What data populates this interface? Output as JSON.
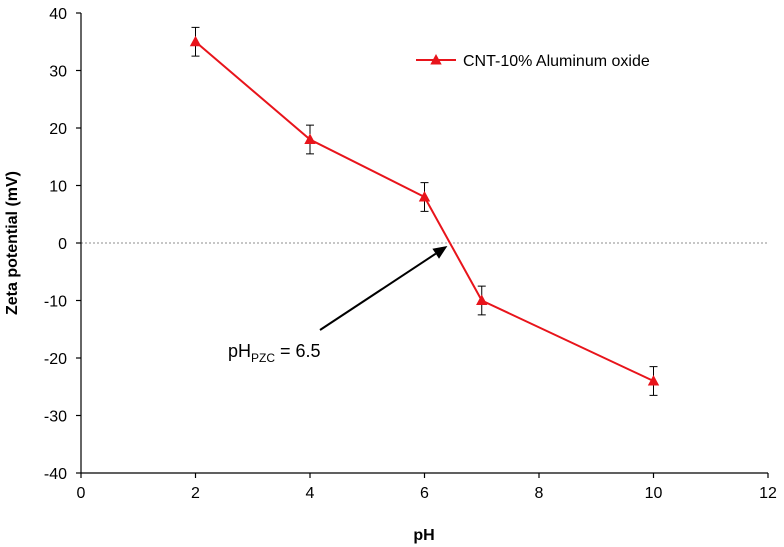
{
  "chart_data": {
    "type": "line",
    "xlabel": "pH",
    "ylabel": "Zeta potential (mV)",
    "xlim": [
      0,
      12
    ],
    "ylim": [
      -40,
      40
    ],
    "xticks": [
      0,
      2,
      4,
      6,
      8,
      10,
      12
    ],
    "yticks": [
      -40,
      -30,
      -20,
      -10,
      0,
      10,
      20,
      30,
      40
    ],
    "grid": false,
    "legend_position": "top-right",
    "zero_line": true,
    "series": [
      {
        "name": "CNT-10% Aluminum oxide",
        "color": "#e8141b",
        "marker": "triangle",
        "x": [
          2,
          4,
          6,
          7,
          10
        ],
        "y": [
          35,
          18,
          8,
          -10,
          -24
        ],
        "error": [
          2.5,
          2.5,
          2.5,
          2.5,
          2.5
        ]
      }
    ],
    "annotation": {
      "text_main": "pH",
      "text_sub": "PZC",
      "text_rest": " = 6.5",
      "arrow_target": [
        6.4,
        0
      ]
    }
  }
}
